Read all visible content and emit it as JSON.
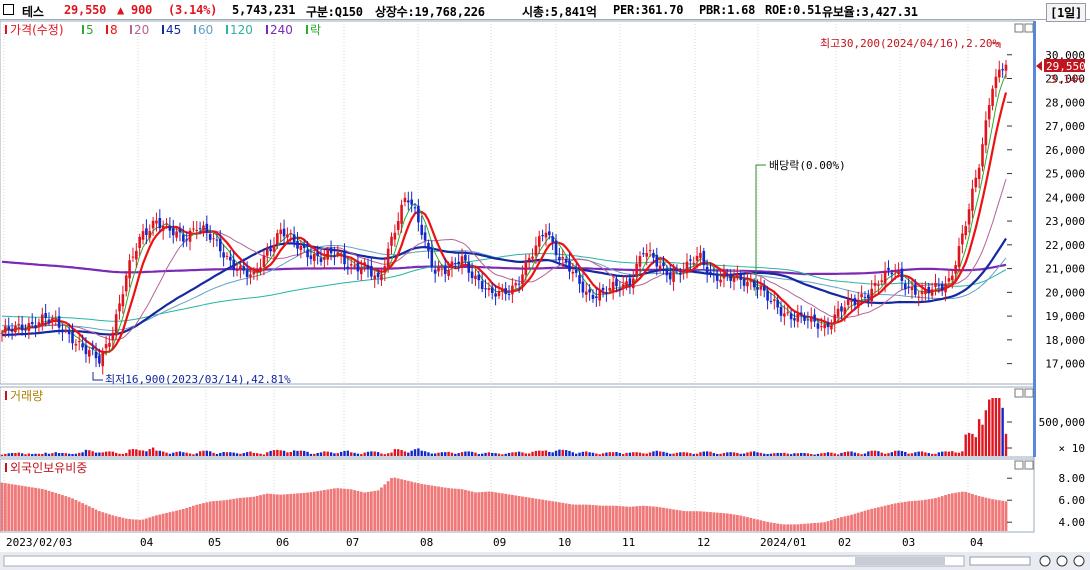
{
  "header": {
    "name": "테스",
    "price": "29,550",
    "change": "▲ 900",
    "change_pct": "(3.14%)",
    "volume": "5,743,231",
    "market": "구분:Q150",
    "shares": "상장수:19,768,226",
    "mcap": "시총:5,841억",
    "per": "PER:361.70",
    "pbr": "PBR:1.68",
    "roe": "ROE:0.51",
    "float": "유보율:3,427.31",
    "period": "[1일]"
  },
  "colors": {
    "up": "#e0141e",
    "down": "#1428c8",
    "ma5": "#2eaa2e",
    "ma8": "#e11",
    "ma20": "#b46496",
    "ma45": "#1428a0",
    "ma60": "#64a0c8",
    "ma120": "#28b4a0",
    "ma240": "#7a2ab4",
    "volume": "#c0141e",
    "foreign": "#f07878"
  },
  "legend": {
    "price": "가격(수정)",
    "items": [
      {
        "label": "5",
        "color": "#2eaa2e"
      },
      {
        "label": "8",
        "color": "#e11"
      },
      {
        "label": "20",
        "color": "#b46496"
      },
      {
        "label": "45",
        "color": "#1428a0"
      },
      {
        "label": "60",
        "color": "#64a0c8"
      },
      {
        "label": "120",
        "color": "#28b4a0"
      },
      {
        "label": "240",
        "color": "#7a2ab4"
      },
      {
        "label": "락",
        "color": "#2eaa2e"
      }
    ],
    "volume": "거래량",
    "foreign": "외국인보유비중"
  },
  "annotations": {
    "high": "최고30,200(2024/04/16),2.20%",
    "low": "최저16,900(2023/03/14),42.81%",
    "dividend": "배당락(0.00%)",
    "current_price": "29,550",
    "current_pct": "3.14%"
  },
  "chart_data": [
    {
      "type": "candlestick",
      "title": "",
      "ylim": [
        16500,
        30800
      ],
      "yticks": [
        "30,000",
        "29,000",
        "28,000",
        "27,000",
        "26,000",
        "25,000",
        "24,000",
        "23,000",
        "22,000",
        "21,000",
        "20,000",
        "19,000",
        "18,000",
        "17,000"
      ],
      "x_labels": [
        "2023/02/03",
        "04",
        "05",
        "06",
        "07",
        "08",
        "09",
        "10",
        "11",
        "12",
        "2024/01",
        "02",
        "03",
        "04"
      ],
      "close_series": [
        18300,
        18400,
        18700,
        18900,
        18600,
        18200,
        17500,
        17100,
        18600,
        20800,
        22400,
        23100,
        22500,
        22300,
        22900,
        22200,
        21600,
        21000,
        20500,
        21800,
        22600,
        22000,
        21700,
        21400,
        21600,
        21200,
        21000,
        20400,
        22500,
        24000,
        22800,
        21000,
        20800,
        21500,
        20600,
        19800,
        20100,
        20400,
        21500,
        22800,
        21400,
        20700,
        20000,
        19900,
        20200,
        20500,
        21700,
        21200,
        20800,
        20900,
        21600,
        20700,
        20500,
        20600,
        20400,
        19600,
        19200,
        19000,
        18700,
        18600,
        19200,
        19500,
        20000,
        20500,
        20900,
        20300,
        19800,
        20200,
        20600,
        22500,
        25200,
        28800,
        29550
      ],
      "high": {
        "value": 30200,
        "date": "2024/04/16"
      },
      "low": {
        "value": 16900,
        "date": "2023/03/14"
      },
      "last": 29550
    },
    {
      "type": "bar",
      "title": "거래량",
      "yticks": [
        "500,000",
        "× 10"
      ],
      "values": [
        4,
        5,
        3,
        6,
        4,
        5,
        8,
        6,
        5,
        9,
        12,
        7,
        6,
        5,
        7,
        6,
        5,
        6,
        4,
        8,
        9,
        7,
        5,
        6,
        7,
        5,
        6,
        5,
        9,
        10,
        7,
        5,
        6,
        6,
        5,
        4,
        5,
        6,
        7,
        9,
        8,
        6,
        5,
        5,
        6,
        5,
        7,
        6,
        5,
        5,
        6,
        5,
        5,
        6,
        5,
        4,
        5,
        4,
        4,
        5,
        6,
        5,
        7,
        6,
        7,
        6,
        5,
        6,
        8,
        30,
        80,
        100,
        60
      ]
    },
    {
      "type": "area",
      "title": "외국인보유비중",
      "ylim": [
        3.2,
        9.2
      ],
      "yticks": [
        "8.00",
        "6.00",
        "4.00"
      ],
      "values": [
        7.6,
        7.4,
        7.2,
        7.0,
        6.6,
        6.2,
        5.6,
        5.0,
        4.6,
        4.3,
        4.2,
        4.6,
        4.9,
        5.2,
        5.6,
        5.9,
        6.0,
        6.2,
        6.3,
        6.6,
        6.5,
        6.6,
        6.7,
        6.9,
        7.1,
        7.0,
        6.7,
        6.9,
        8.1,
        7.8,
        7.5,
        7.3,
        7.1,
        7.0,
        6.7,
        6.8,
        6.6,
        6.4,
        6.2,
        6.0,
        5.8,
        5.6,
        5.6,
        5.5,
        5.5,
        5.4,
        5.5,
        5.4,
        5.2,
        5.0,
        5.0,
        4.9,
        4.8,
        4.6,
        4.3,
        4.0,
        3.8,
        3.8,
        3.9,
        4.0,
        4.4,
        4.7,
        5.1,
        5.4,
        5.7,
        5.9,
        6.0,
        6.2,
        6.6,
        6.8,
        6.4,
        6.1,
        5.9
      ]
    }
  ]
}
